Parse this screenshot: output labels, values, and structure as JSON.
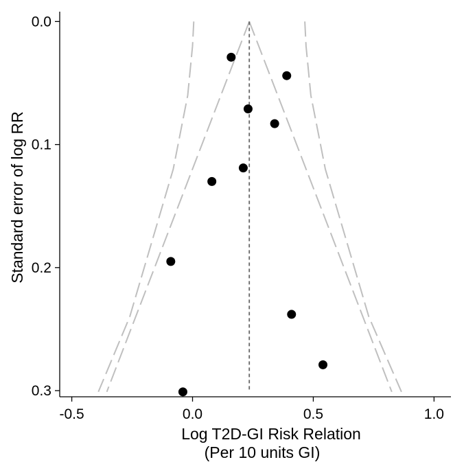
{
  "chart_data": {
    "type": "scatter",
    "subtype": "funnel-plot",
    "title": "",
    "xlabel": "Log T2D-GI Risk Relation",
    "xlabel_line2": "(Per 10 units GI)",
    "ylabel": "Standard error of log RR",
    "xlim": [
      -0.55,
      1.07
    ],
    "ylim": [
      0.305,
      -0.008
    ],
    "y_axis_reversed": true,
    "x_ticks": [
      -0.5,
      0.0,
      0.5,
      1.0
    ],
    "x_tick_labels": [
      "-0.5",
      "0.0",
      "0.5",
      "1.0"
    ],
    "y_ticks": [
      0.0,
      0.1,
      0.2,
      0.3
    ],
    "y_tick_labels": [
      "0.0",
      "0.1",
      "0.2",
      "0.3"
    ],
    "pooled_estimate": 0.235,
    "points": [
      {
        "x": 0.16,
        "y": 0.029
      },
      {
        "x": 0.39,
        "y": 0.044
      },
      {
        "x": 0.23,
        "y": 0.071
      },
      {
        "x": 0.34,
        "y": 0.083
      },
      {
        "x": 0.21,
        "y": 0.119
      },
      {
        "x": 0.08,
        "y": 0.13
      },
      {
        "x": -0.09,
        "y": 0.195
      },
      {
        "x": 0.41,
        "y": 0.238
      },
      {
        "x": 0.54,
        "y": 0.279
      },
      {
        "x": -0.04,
        "y": 0.301
      }
    ],
    "funnel_lines": [
      {
        "name": "inner-left",
        "style": "long-dash",
        "points": [
          [
            0.235,
            0.0
          ],
          [
            -0.355,
            0.301
          ]
        ]
      },
      {
        "name": "inner-right",
        "style": "long-dash",
        "points": [
          [
            0.235,
            0.0
          ],
          [
            0.825,
            0.301
          ]
        ]
      },
      {
        "name": "outer-left",
        "style": "long-dash",
        "points": [
          [
            0.005,
            0.0
          ],
          [
            0.0,
            0.02
          ],
          [
            -0.02,
            0.06
          ],
          [
            -0.08,
            0.12
          ],
          [
            -0.17,
            0.18
          ],
          [
            -0.26,
            0.24
          ],
          [
            -0.39,
            0.301
          ]
        ]
      },
      {
        "name": "outer-right",
        "style": "long-dash",
        "points": [
          [
            0.465,
            0.0
          ],
          [
            0.47,
            0.02
          ],
          [
            0.49,
            0.06
          ],
          [
            0.55,
            0.12
          ],
          [
            0.64,
            0.18
          ],
          [
            0.73,
            0.24
          ],
          [
            0.865,
            0.301
          ]
        ]
      }
    ],
    "colors": {
      "points": "#000000",
      "funnel": "#bfbfbf",
      "pooled_line": "#666666",
      "axis": "#000000"
    },
    "grid": false,
    "legend": "none"
  }
}
